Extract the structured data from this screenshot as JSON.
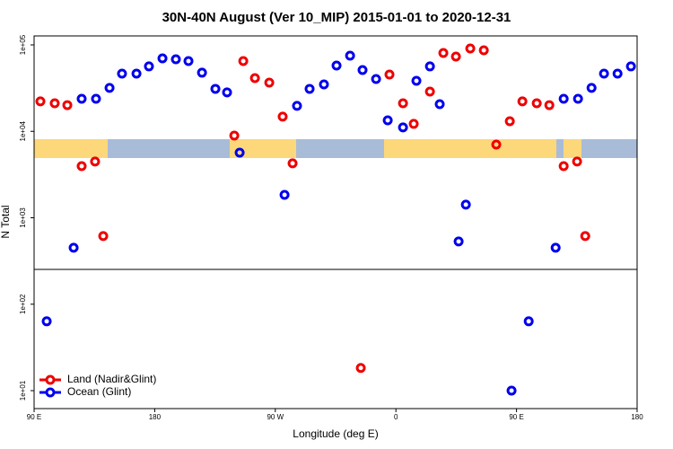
{
  "chart_data": {
    "type": "scatter",
    "title": "30N-40N August (Ver 10_MIP)   2015-01-01 to 2020-12-31",
    "xlabel": "Longitude (deg E)",
    "ylabel": "N Total",
    "log_y": true,
    "legend": "bottom-left",
    "xlim": [
      90,
      540
    ],
    "ylim": [
      6.2,
      127000
    ],
    "xticks": [
      {
        "value": 90,
        "label": "90 E"
      },
      180,
      {
        "value": 270,
        "label": "90 W"
      },
      {
        "value": 360,
        "label": "0"
      },
      {
        "value": 450,
        "label": "90 E"
      },
      {
        "value": 540,
        "label": "180"
      }
    ],
    "yticks": [
      {
        "value": 10,
        "label": "1e+01"
      },
      {
        "value": 100,
        "label": "1e+02"
      },
      {
        "value": 1000,
        "label": "1e+03"
      },
      {
        "value": 10000,
        "label": "1e+04"
      },
      {
        "value": 100000,
        "label": "1e+05"
      }
    ],
    "series": [
      {
        "name": "Land (Nadir&Glint)",
        "color": "#ee0000",
        "x": [
          94.7,
          105.4,
          114.8,
          125.5,
          135.5,
          141.6,
          239.4,
          246.1,
          254.8,
          265.5,
          275.5,
          282.9,
          333.8,
          355.2,
          365.3,
          373.3,
          385.4,
          395.4,
          404.8,
          415.5,
          425.6,
          434.9,
          445.0,
          454.4,
          465.1,
          474.5,
          485.2,
          495.2,
          501.3
        ],
        "values": [
          22200,
          21100,
          20100,
          3960,
          4470,
          614,
          8930,
          65000,
          41300,
          36600,
          14800,
          4260,
          18.3,
          45400,
          21100,
          12200,
          28800,
          80700,
          73300,
          90800,
          86700,
          7030,
          13100,
          22200,
          21100,
          20100,
          3960,
          4470,
          614
        ]
      },
      {
        "name": "Ocean (Glint)",
        "color": "#0000ee",
        "x": [
          99.4,
          119.5,
          125.5,
          136.2,
          146.3,
          155.6,
          166.4,
          175.7,
          185.8,
          195.8,
          205.2,
          215.3,
          225.3,
          234.0,
          243.4,
          276.9,
          286.2,
          295.6,
          306.3,
          315.7,
          325.8,
          335.1,
          345.2,
          353.9,
          365.3,
          375.3,
          385.4,
          392.7,
          406.8,
          412.2,
          446.3,
          459.1,
          479.2,
          485.2,
          495.9,
          506.0,
          515.3,
          525.4,
          535.4
        ],
        "values": [
          63.4,
          450,
          23800,
          23800,
          31800,
          46500,
          46500,
          56400,
          69900,
          68200,
          65000,
          47700,
          31000,
          28200,
          5670,
          1840,
          19700,
          31000,
          34900,
          57700,
          75000,
          51200,
          40300,
          13400,
          11100,
          38400,
          56400,
          20600,
          532,
          1420,
          10,
          63.4,
          450,
          23800,
          23800,
          31800,
          46500,
          46500,
          56400
        ]
      }
    ]
  }
}
